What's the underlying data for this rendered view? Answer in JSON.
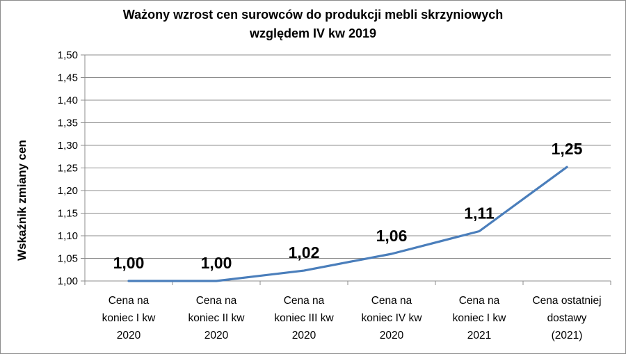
{
  "chart_data": {
    "type": "line",
    "title": "Ważony wzrost cen surowców do produkcji mebli skrzyniowych\nwzględem IV kw 2019",
    "xlabel": "",
    "ylabel": "Wskaźnik zmiany cen",
    "ylim": [
      1.0,
      1.5
    ],
    "ytick_step": 0.05,
    "yticks": [
      "1,00",
      "1,05",
      "1,10",
      "1,15",
      "1,20",
      "1,25",
      "1,30",
      "1,35",
      "1,40",
      "1,45",
      "1,50"
    ],
    "categories": [
      [
        "Cena na",
        "koniec I kw",
        "2020"
      ],
      [
        "Cena na",
        "koniec II kw",
        "2020"
      ],
      [
        "Cena na",
        "koniec III kw",
        "2020"
      ],
      [
        "Cena na",
        "koniec IV kw",
        "2020"
      ],
      [
        "Cena na",
        "koniec I kw",
        "2021"
      ],
      [
        "Cena ostatniej",
        "dostawy",
        "(2021)"
      ]
    ],
    "series": [
      {
        "values": [
          1.0,
          1.0,
          1.023,
          1.06,
          1.11,
          1.252
        ],
        "labels": [
          "1,00",
          "1,00",
          "1,02",
          "1,06",
          "1,11",
          "1,25"
        ],
        "color": "#4a7ebb"
      }
    ],
    "grid": true,
    "legend": "none"
  }
}
